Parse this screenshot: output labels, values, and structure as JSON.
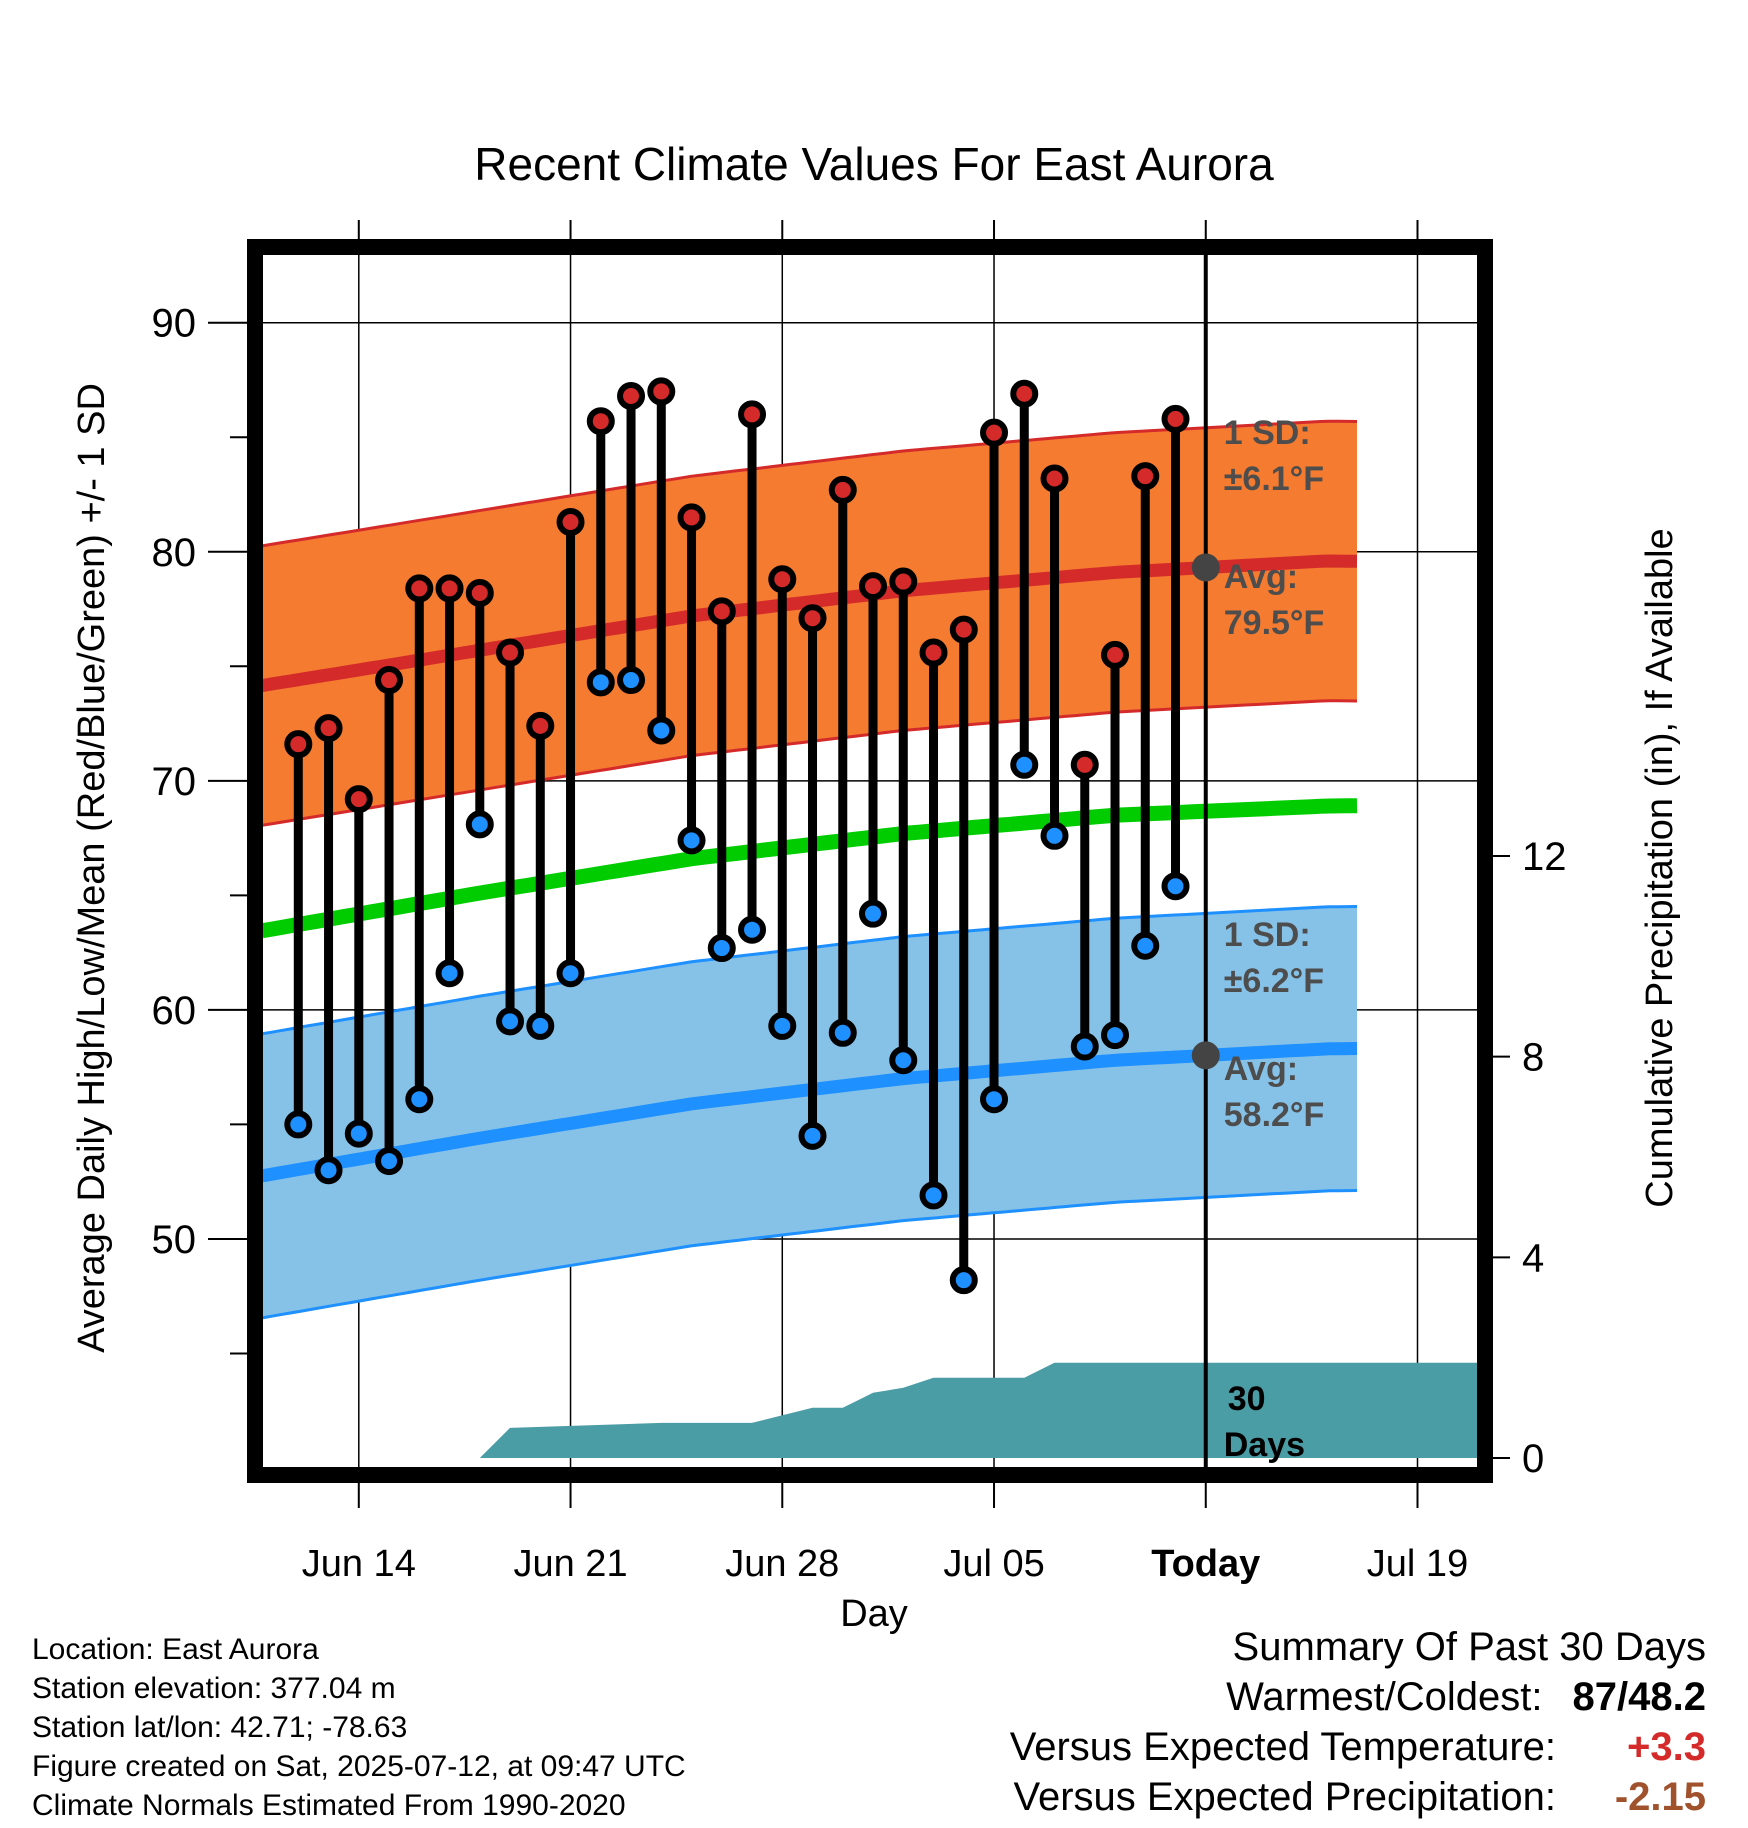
{
  "chart_data": {
    "type": "line",
    "title": "Recent Climate Values For East Aurora",
    "xlabel": "Day",
    "ylabel": "Average Daily High/Low/Mean (Red/Blue/Green) +/- 1 SD",
    "y2label": "Cumulative Precipitation (in), If Available",
    "x_ticks": [
      "Jun 14",
      "Jun 21",
      "Jun 28",
      "Jul 05",
      "Today",
      "Jul 19"
    ],
    "y_ticks": [
      "50",
      "60",
      "70",
      "80",
      "90"
    ],
    "y2_ticks": [
      "0",
      "4",
      "8",
      "12"
    ],
    "ylim": [
      40,
      93
    ],
    "y2lim": [
      0,
      24
    ],
    "xlim_days_from_jun14": [
      -3.2,
      37
    ],
    "days": [
      "Jun 12",
      "Jun 13",
      "Jun 14",
      "Jun 15",
      "Jun 16",
      "Jun 17",
      "Jun 18",
      "Jun 19",
      "Jun 20",
      "Jun 21",
      "Jun 22",
      "Jun 23",
      "Jun 24",
      "Jun 25",
      "Jun 26",
      "Jun 27",
      "Jun 28",
      "Jun 29",
      "Jun 30",
      "Jul 01",
      "Jul 02",
      "Jul 03",
      "Jul 04",
      "Jul 05",
      "Jul 06",
      "Jul 07",
      "Jul 08",
      "Jul 09",
      "Jul 10",
      "Jul 11"
    ],
    "series": [
      {
        "name": "Daily High",
        "color": "#d42a2a",
        "values": [
          71.6,
          72.3,
          69.2,
          74.4,
          78.4,
          78.4,
          78.2,
          75.6,
          72.4,
          81.3,
          85.7,
          86.8,
          87.0,
          81.5,
          77.4,
          86.0,
          78.8,
          77.1,
          82.7,
          78.5,
          78.7,
          75.6,
          76.6,
          85.2,
          86.9,
          83.2,
          70.7,
          75.5,
          83.3,
          85.8
        ]
      },
      {
        "name": "Daily Low",
        "color": "#1e90ff",
        "values": [
          55.0,
          53.0,
          54.6,
          53.4,
          56.1,
          61.6,
          68.1,
          59.5,
          59.3,
          61.6,
          74.3,
          74.4,
          72.2,
          67.4,
          62.7,
          63.5,
          59.3,
          54.5,
          59.0,
          64.2,
          57.8,
          51.9,
          48.2,
          56.1,
          70.7,
          67.6,
          58.4,
          58.9,
          62.8,
          65.4
        ]
      }
    ],
    "normals": {
      "x": [
        "Jun 11",
        "Jun 18",
        "Jun 25",
        "Jul 02",
        "Jul 09",
        "Jul 16",
        "Jul 23"
      ],
      "avg_high": [
        74.2,
        75.7,
        77.2,
        78.3,
        79.1,
        79.6,
        79.5
      ],
      "avg_low": [
        52.8,
        54.4,
        55.9,
        57.0,
        57.8,
        58.3,
        58.4
      ],
      "avg_mean": [
        63.5,
        65.1,
        66.6,
        67.7,
        68.5,
        68.9,
        69.0
      ],
      "high_sd": 6.1,
      "low_sd": 6.2
    },
    "precipitation": {
      "x": [
        "Jun 18",
        "Jun 19",
        "Jun 24",
        "Jun 27",
        "Jun 29",
        "Jun 30",
        "Jul 01",
        "Jul 02",
        "Jul 03",
        "Jul 06",
        "Jul 07",
        "Jul 10",
        "Jul 23"
      ],
      "cumulative": [
        0,
        0.6,
        0.7,
        0.7,
        1.0,
        1.0,
        1.3,
        1.4,
        1.6,
        1.6,
        1.9,
        1.9,
        1.9
      ]
    },
    "annotations": {
      "high_sd_label": "1 SD:",
      "high_sd_value": "±6.1°F",
      "high_avg_label": "Avg:",
      "high_avg_value": "79.5°F",
      "low_sd_label": "1 SD:",
      "low_sd_value": "±6.2°F",
      "low_avg_label": "Avg:",
      "low_avg_value": "58.2°F",
      "period_label_1": "30",
      "period_label_2": "Days"
    },
    "colors": {
      "high_band": "#f47b30",
      "high_line": "#d42a2a",
      "low_band": "#86c2e8",
      "low_line": "#1e90ff",
      "mean_line": "#00cc00",
      "precip": "#4a9ca5"
    }
  },
  "info": {
    "location": "Location: East Aurora",
    "elevation": "Station elevation: 377.04 m",
    "latlon": "Station lat/lon: 42.71; -78.63",
    "created": "Figure created on Sat, 2025-07-12, at 09:47 UTC",
    "normals": "Climate Normals Estimated From 1990-2020"
  },
  "summary": {
    "title": "Summary Of Past 30 Days",
    "warmest_label": "Warmest/Coldest:",
    "warmest_value": "87",
    "coldest_value": "48.2",
    "temp_label": "Versus Expected Temperature:",
    "temp_value": "+3.3",
    "temp_color": "#d42a2a",
    "precip_label": "Versus Expected Precipitation:",
    "precip_value": "-2.15",
    "precip_color": "#a0522d"
  }
}
